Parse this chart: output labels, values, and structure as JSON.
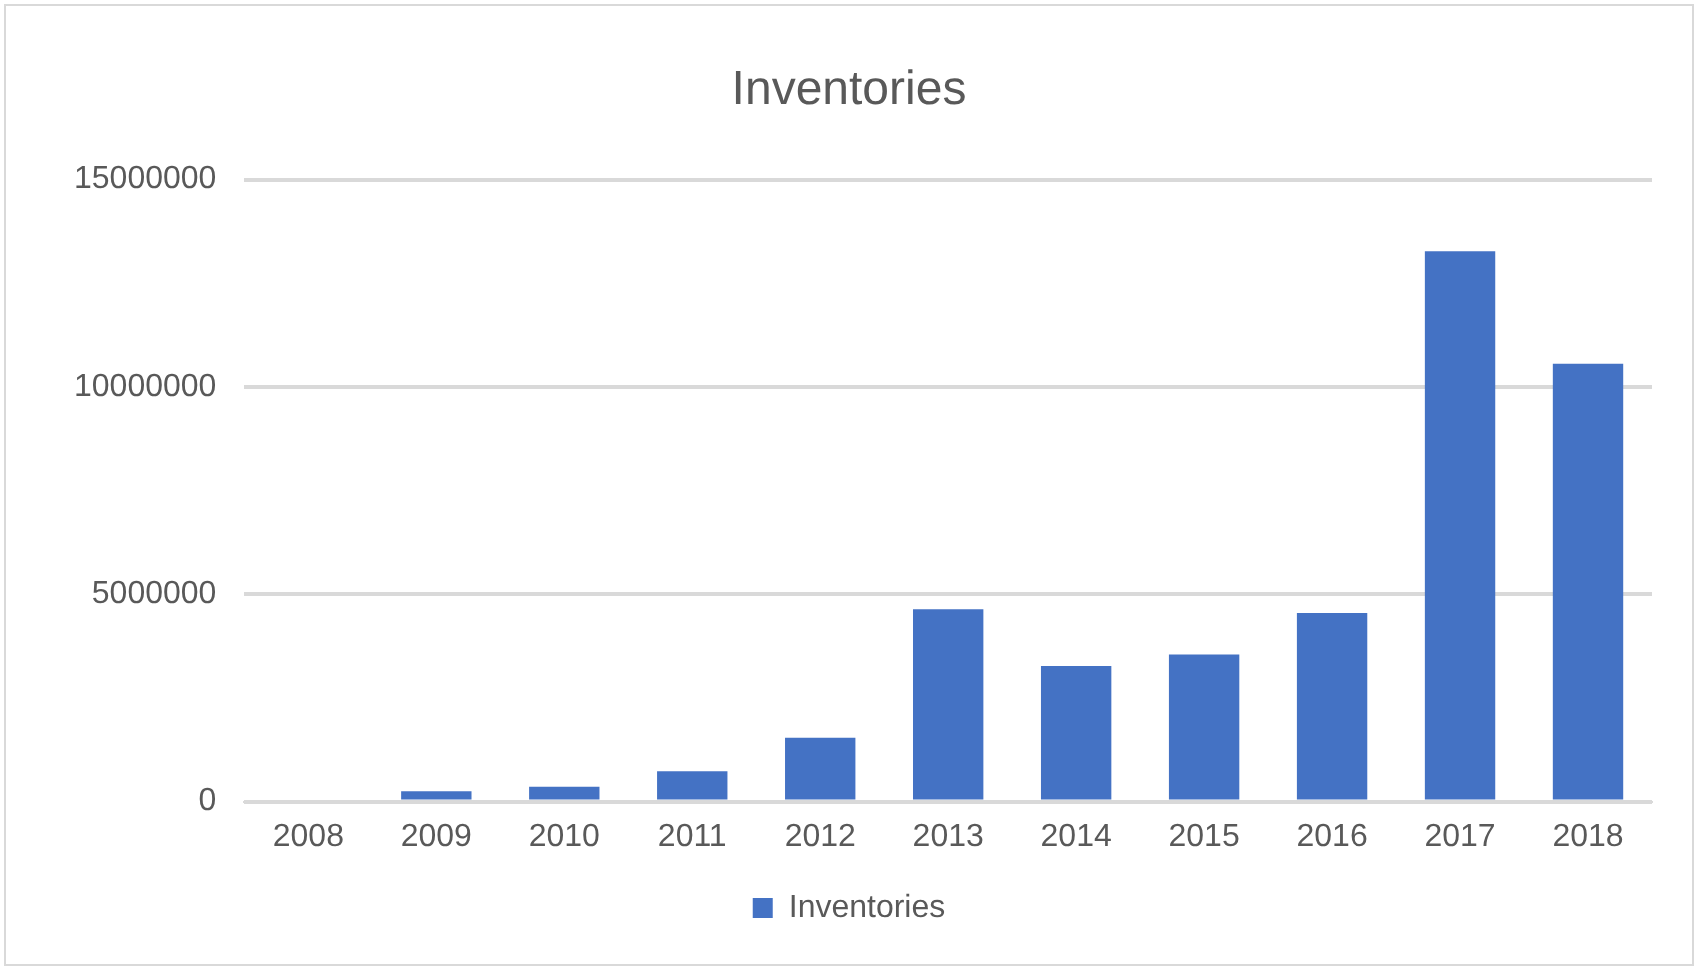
{
  "chart_data": {
    "type": "bar",
    "title": "Inventories",
    "categories": [
      "2008",
      "2009",
      "2010",
      "2011",
      "2012",
      "2013",
      "2014",
      "2015",
      "2016",
      "2017",
      "2018"
    ],
    "series": [
      {
        "name": "Inventories",
        "color": "#4472c4",
        "values": [
          0,
          250000,
          360000,
          730000,
          1540000,
          4640000,
          3270000,
          3550000,
          4550000,
          13270000,
          10560000
        ]
      }
    ],
    "ylim": [
      0,
      15000000
    ],
    "yticks": [
      0,
      5000000,
      10000000,
      15000000
    ],
    "grid": "y",
    "legend": "bottom"
  }
}
